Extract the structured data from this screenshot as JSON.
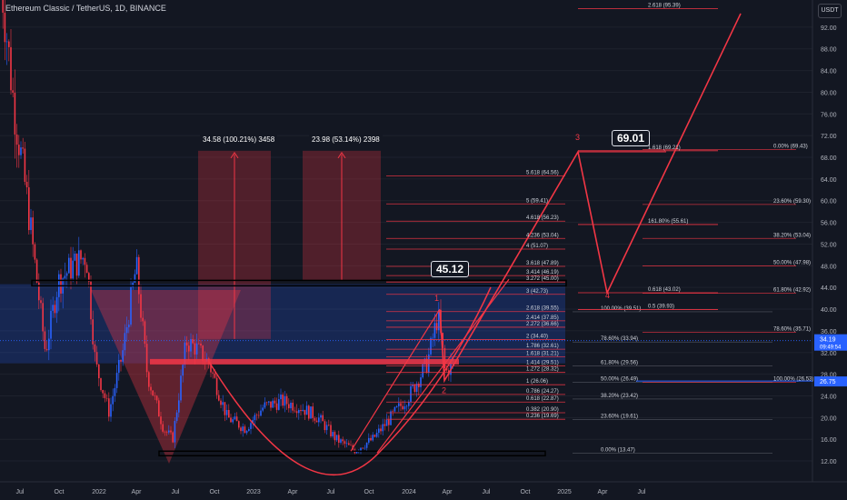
{
  "header": {
    "title": "Ethereum Classic / TetherUS, 1D, BINANCE",
    "currency": "USDT"
  },
  "chart_data": {
    "type": "line",
    "price_axis": {
      "ticks": [
        12,
        16,
        20,
        24,
        28,
        32,
        36,
        40,
        44,
        48,
        52,
        56,
        60,
        64,
        68,
        72,
        76,
        80,
        84,
        88,
        92
      ],
      "ylim": [
        10.5,
        96
      ],
      "current_price": "34.19",
      "countdown": "09:49:54",
      "marker_price": "26.75"
    },
    "time_axis": {
      "labels": [
        "Jul",
        "Oct",
        "2022",
        "Apr",
        "Jul",
        "Oct",
        "2023",
        "Apr",
        "Jul",
        "Oct",
        "2024",
        "Apr",
        "Jul",
        "Oct",
        "2025",
        "Apr",
        "Jul"
      ]
    },
    "callouts": [
      {
        "text": "69.01"
      },
      {
        "text": "45.12"
      }
    ],
    "wave_labels": [
      "1",
      "2",
      "3",
      "4"
    ],
    "measurements": [
      {
        "text": "34.58 (100.21%) 3458",
        "from": 34.5,
        "to": 69.2
      },
      {
        "text": "23.98 (53.14%) 2398",
        "from": 45.3,
        "to": 69.2
      }
    ],
    "ext_levels": [
      {
        "label": "5.618 (64.56)",
        "price": 64.56
      },
      {
        "label": "5 (59.41)",
        "price": 59.41
      },
      {
        "label": "4.618 (56.23)",
        "price": 56.23
      },
      {
        "label": "4.236 (53.04)",
        "price": 53.04
      },
      {
        "label": "4 (51.07)",
        "price": 51.07
      },
      {
        "label": "3.618 (47.89)",
        "price": 47.89
      },
      {
        "label": "3.414 (46.19)",
        "price": 46.19
      },
      {
        "label": "3.272 (45.00)",
        "price": 45.0
      },
      {
        "label": "3 (42.73)",
        "price": 42.73
      },
      {
        "label": "2.618 (39.55)",
        "price": 39.55
      },
      {
        "label": "2.414 (37.85)",
        "price": 37.85
      },
      {
        "label": "2.272 (36.66)",
        "price": 36.66
      },
      {
        "label": "2 (34.40)",
        "price": 34.4
      },
      {
        "label": "1.786 (32.61)",
        "price": 32.61
      },
      {
        "label": "1.618 (31.21)",
        "price": 31.21
      },
      {
        "label": "1.414 (29.51)",
        "price": 29.51
      },
      {
        "label": "1.272 (28.32)",
        "price": 28.32
      },
      {
        "label": "1 (26.06)",
        "price": 26.06
      },
      {
        "label": "0.786 (24.27)",
        "price": 24.27
      },
      {
        "label": "0.618 (22.87)",
        "price": 22.87
      },
      {
        "label": "0.382 (20.90)",
        "price": 20.9
      },
      {
        "label": "0.236 (19.69)",
        "price": 19.69
      }
    ],
    "ret_mid": [
      {
        "label": "100.00% (39.51)",
        "price": 39.51
      },
      {
        "label": "78.60% (33.94)",
        "price": 33.94
      },
      {
        "label": "61.80% (29.56)",
        "price": 29.56
      },
      {
        "label": "50.00% (26.49)",
        "price": 26.49
      },
      {
        "label": "38.20% (23.42)",
        "price": 23.42
      },
      {
        "label": "23.60% (19.61)",
        "price": 19.61
      },
      {
        "label": "0.00% (13.47)",
        "price": 13.47
      }
    ],
    "ret_right": [
      {
        "label": "0.00% (69.43)",
        "price": 69.43
      },
      {
        "label": "23.60% (59.30)",
        "price": 59.3
      },
      {
        "label": "38.20% (53.04)",
        "price": 53.04
      },
      {
        "label": "50.00% (47.98)",
        "price": 47.98
      },
      {
        "label": "61.80% (42.92)",
        "price": 42.92
      },
      {
        "label": "78.60% (35.71)",
        "price": 35.71
      },
      {
        "label": "100.00% (26.53)",
        "price": 26.53
      }
    ],
    "wave3_fib": [
      {
        "label": "2.618 (95.39)",
        "price": 95.39
      },
      {
        "label": "1.618 (69.21)",
        "price": 69.21
      },
      {
        "label": "161.80% (55.61)",
        "price": 55.61
      },
      {
        "label": "0.618 (43.02)",
        "price": 43.02
      },
      {
        "label": "0.5 (39.93)",
        "price": 39.93
      }
    ],
    "support_levels": [
      44.5,
      30.0,
      13.3
    ],
    "colors": {
      "background": "#131722",
      "up": "#2962ff",
      "down": "#f23645",
      "pattern": "#f23645",
      "fib": "#f23645",
      "current_price": "#2962ff"
    }
  }
}
